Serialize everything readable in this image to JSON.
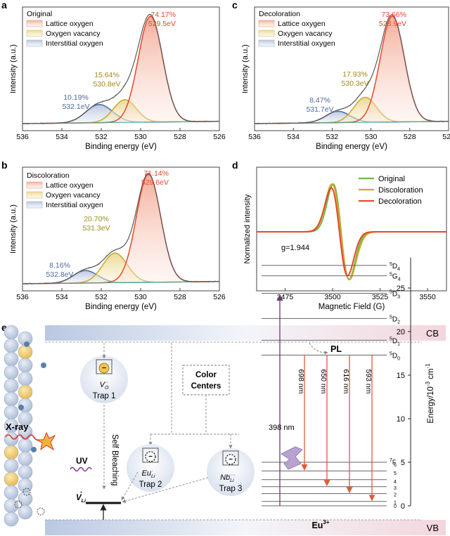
{
  "colors": {
    "lattice": "#e8472a",
    "vacancy": "#c9a82c",
    "interstitial": "#4d6a9c",
    "envelope": "#777777",
    "tick_gray": "#555555",
    "epr_original": "#6bb84a",
    "epr_discoloration": "#c9a82c",
    "epr_decoloration": "#e8472a",
    "cb_band": "#c9d6ea",
    "vb_band": "#c9d6ea",
    "arrow_red": "#e05a3a"
  },
  "chart_data": [
    {
      "panel": "a",
      "type": "line",
      "title": "Original",
      "xlabel": "Binding energy (eV)",
      "ylabel": "Intensity (a.u.)",
      "xlim": [
        536,
        526
      ],
      "xticks": [
        "536",
        "534",
        "532",
        "530",
        "528",
        "526"
      ],
      "legend": [
        "Lattice oxygen",
        "Oxygen vacancy",
        "Interstitial oxygen"
      ],
      "peaks": [
        {
          "name": "Lattice oxygen",
          "center": 529.5,
          "height": 0.93,
          "width": 0.62,
          "percent": "74.17%",
          "energy": "529.5eV"
        },
        {
          "name": "Oxygen vacancy",
          "center": 530.8,
          "height": 0.2,
          "width": 0.58,
          "percent": "15.64%",
          "energy": "530.8eV"
        },
        {
          "name": "Interstitial oxygen",
          "center": 532.1,
          "height": 0.16,
          "width": 0.68,
          "percent": "10.19%",
          "energy": "532.1eV"
        }
      ]
    },
    {
      "panel": "b",
      "type": "line",
      "title": "Discoloration",
      "xlabel": "Binding energy (eV)",
      "ylabel": "Intensity (a.u.)",
      "xlim": [
        536,
        526
      ],
      "xticks": [
        "536",
        "534",
        "532",
        "530",
        "528",
        "526"
      ],
      "legend": [
        "Lattice oxygen",
        "Oxygen vacancy",
        "Interstitial oxygen"
      ],
      "peaks": [
        {
          "name": "Lattice oxygen",
          "center": 529.6,
          "height": 0.95,
          "width": 0.62,
          "percent": "71.14%",
          "energy": "529.6eV"
        },
        {
          "name": "Oxygen vacancy",
          "center": 531.3,
          "height": 0.26,
          "width": 0.62,
          "percent": "20.70%",
          "energy": "531.3eV"
        },
        {
          "name": "Interstitial oxygen",
          "center": 532.8,
          "height": 0.11,
          "width": 0.62,
          "percent": "8.16%",
          "energy": "532.8eV"
        }
      ]
    },
    {
      "panel": "c",
      "type": "line",
      "title": "Decoloration",
      "xlabel": "Binding energy (eV)",
      "ylabel": "Intensity (a.u.)",
      "xlim": [
        536,
        526
      ],
      "xticks": [
        "536",
        "534",
        "532",
        "530",
        "528",
        "526"
      ],
      "legend": [
        "Lattice oxygen",
        "Oxygen vacancy",
        "Interstitial oxygen"
      ],
      "peaks": [
        {
          "name": "Lattice oxygen",
          "center": 528.9,
          "height": 0.93,
          "width": 0.62,
          "percent": "73.66%",
          "energy": "528.9eV"
        },
        {
          "name": "Oxygen vacancy",
          "center": 530.3,
          "height": 0.22,
          "width": 0.58,
          "percent": "17.93%",
          "energy": "530.3eV"
        },
        {
          "name": "Interstitial oxygen",
          "center": 531.7,
          "height": 0.1,
          "width": 0.62,
          "percent": "8.47%",
          "energy": "531.7eV"
        }
      ]
    },
    {
      "panel": "d",
      "type": "line",
      "xlabel": "Magnetic Field (G)",
      "ylabel": "Normalized intensity",
      "xlim": [
        3460,
        3560
      ],
      "xticks": [
        "3475",
        "3500",
        "3525",
        "3550"
      ],
      "annotation": "g=1.944",
      "series": [
        {
          "name": "Original",
          "center": 3504.5,
          "halfwidth": 4.2,
          "amplitude": 1.0
        },
        {
          "name": "Discoloration",
          "center": 3504.3,
          "halfwidth": 4.6,
          "amplitude": 1.0
        },
        {
          "name": "Decoloration",
          "center": 3503.6,
          "halfwidth": 4.3,
          "amplitude": 0.92
        }
      ]
    }
  ],
  "panel_letters": {
    "a": "a",
    "b": "b",
    "c": "c",
    "d": "d",
    "e": "e"
  },
  "diagram": {
    "cb": "CB",
    "vb": "VB",
    "xray": "X-ray",
    "uv": "UV",
    "self_bleaching": "Self Bleaching",
    "color_centers_line1": "Color",
    "color_centers_line2": "Centers",
    "pl": "PL",
    "trap1_species": "V",
    "trap1_sub": "O",
    "trap1_sup": "··",
    "trap1_label": "Trap 1",
    "trap2_species": "Eu",
    "trap2_sub": "Li",
    "trap2_sup": "··",
    "trap2_label": "Trap 2",
    "trap3_species": "Nb",
    "trap3_sub": "Li",
    "trap3_sup": "····",
    "trap3_label": "Trap 3",
    "vli": "V",
    "vli_sub": "Li",
    "vli_sup": "′",
    "minus": "−",
    "excitation": "398 nm",
    "emissions": [
      "698 nm",
      "650 nm",
      "616 nm",
      "593 nm"
    ],
    "eu": "Eu",
    "eu_sup": "3+",
    "energy_axis_label": "Energy/10",
    "energy_axis_exp": "-3",
    "energy_axis_unit": " cm",
    "energy_axis_unit_exp": "-1",
    "energy_ticks": [
      "0",
      "5",
      "10",
      "15",
      "20",
      "25"
    ],
    "upper_levels": [
      {
        "label": "D",
        "sup": "5",
        "sub": "4"
      },
      {
        "label": "G",
        "sup": "5",
        "sub": "4"
      },
      {
        "label": "D",
        "sup": "5",
        "sub": "3"
      },
      {
        "label": "D",
        "sup": "5",
        "sub": "2"
      },
      {
        "label": "D",
        "sup": "5",
        "sub": "1"
      },
      {
        "label": "D",
        "sup": "5",
        "sub": "0"
      }
    ],
    "lower_levels": {
      "label": "F",
      "sup": "7",
      "subs": [
        "6",
        "5",
        "4",
        "3",
        "2",
        "1",
        "0"
      ]
    }
  }
}
